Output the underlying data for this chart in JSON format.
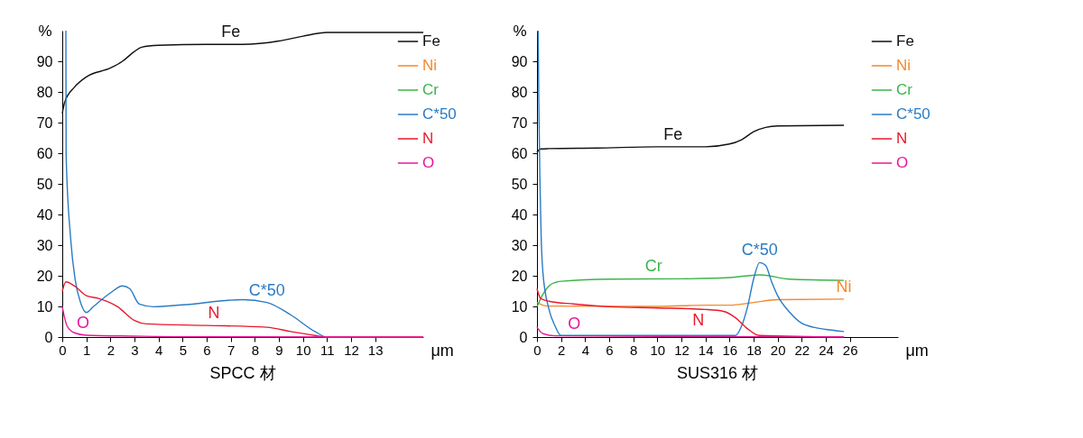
{
  "chart_data": [
    {
      "type": "line",
      "title": "SPCC 材",
      "xlabel": "μm",
      "ylabel": "%",
      "xlim": [
        0,
        15
      ],
      "ylim": [
        0,
        100
      ],
      "xticks": [
        0,
        1,
        2,
        3,
        4,
        5,
        6,
        7,
        8,
        9,
        10,
        11,
        12,
        13
      ],
      "yticks": [
        0,
        10,
        20,
        30,
        40,
        50,
        60,
        70,
        80,
        90
      ],
      "grid": false,
      "legend": "right",
      "line_style": "solid",
      "marker": "none",
      "series": [
        {
          "name": "Fe",
          "color": "#111111",
          "x": [
            0,
            0.1,
            0.5,
            1,
            2,
            2.5,
            3,
            3.3,
            4,
            6,
            7.5,
            9,
            10,
            11,
            15
          ],
          "values": [
            73,
            76.6,
            81.5,
            84.9,
            87.8,
            90,
            93.2,
            94.6,
            95.2,
            95.5,
            95.5,
            96.6,
            98.2,
            99.4,
            99.4
          ]
        },
        {
          "name": "Ni",
          "color": "#f28a2e"
        },
        {
          "name": "Cr",
          "color": "#3cb44b"
        },
        {
          "name": "C*50",
          "color": "#2b7bc4",
          "x": [
            0.15,
            0.16,
            0.35,
            0.53,
            0.77,
            1,
            1.3,
            2,
            2.5,
            2.8,
            3.2,
            3.8,
            5,
            7.5,
            8.5,
            9.5,
            10.5,
            11,
            12
          ],
          "values": [
            100,
            59.5,
            32,
            19,
            11,
            8,
            10,
            14.4,
            16.7,
            15.8,
            10.8,
            9.9,
            10.5,
            12.2,
            11.3,
            7.2,
            1.8,
            0,
            0
          ]
        },
        {
          "name": "N",
          "color": "#e8192c",
          "x": [
            0,
            0.15,
            0.5,
            1,
            1.5,
            2.3,
            3,
            3.5,
            6,
            8.5,
            9.5,
            10.5,
            11,
            15
          ],
          "values": [
            14.9,
            18,
            16.7,
            13.5,
            12.6,
            9.9,
            5.4,
            4.3,
            3.8,
            3.2,
            1.8,
            0.5,
            0,
            0
          ]
        },
        {
          "name": "O",
          "color": "#e8189a",
          "x": [
            0,
            0.2,
            0.5,
            1,
            3,
            5,
            15
          ],
          "values": [
            9.9,
            3.6,
            1.4,
            0.6,
            0.3,
            0.1,
            0
          ]
        }
      ],
      "annotations": [
        {
          "text": "Fe",
          "x": 7,
          "y": 95.5
        },
        {
          "text": "C*50",
          "x": 8.5,
          "y": 11.3
        },
        {
          "text": "N",
          "x": 6.3,
          "y": 3.7
        },
        {
          "text": "O",
          "x": 0.86,
          "y": 0.7
        }
      ]
    },
    {
      "type": "line",
      "title": "SUS316 材",
      "xlabel": "μm",
      "ylabel": "%",
      "xlim": [
        0,
        30
      ],
      "ylim": [
        0,
        100
      ],
      "xticks": [
        0,
        2,
        4,
        6,
        8,
        10,
        12,
        14,
        16,
        18,
        20,
        22,
        24,
        26
      ],
      "yticks": [
        0,
        10,
        20,
        30,
        40,
        50,
        60,
        70,
        80,
        90
      ],
      "grid": false,
      "legend": "right",
      "line_style": "solid",
      "marker": "none",
      "series": [
        {
          "name": "Fe",
          "color": "#111111",
          "x": [
            0,
            0.3,
            1,
            5,
            10,
            14,
            16,
            17,
            18,
            19,
            20,
            25.5
          ],
          "values": [
            60.3,
            61.4,
            61.5,
            61.7,
            62.1,
            62.1,
            63,
            64.4,
            67,
            68.4,
            68.9,
            69.1
          ]
        },
        {
          "name": "Ni",
          "color": "#f28a2e",
          "x": [
            0,
            0.5,
            1,
            10,
            14,
            16,
            18,
            20,
            25.5
          ],
          "values": [
            11.3,
            10.4,
            10.1,
            10,
            10.4,
            10.4,
            11.3,
            12.2,
            12.4
          ]
        },
        {
          "name": "Cr",
          "color": "#3cb44b",
          "x": [
            0,
            0.5,
            1,
            1.5,
            2,
            6,
            12,
            16,
            18.5,
            21,
            25.5
          ],
          "values": [
            9.9,
            14,
            16.7,
            17.8,
            18.2,
            18.9,
            19,
            19.4,
            20.3,
            18.9,
            18.5
          ]
        },
        {
          "name": "C*50",
          "color": "#2b7bc4",
          "x": [
            0.1,
            0.15,
            0.25,
            0.35,
            0.5,
            1,
            1.5,
            2,
            16.5,
            17,
            17.5,
            18,
            18.5,
            19,
            19.5,
            20,
            21,
            22,
            23,
            24,
            25.5
          ],
          "values": [
            100,
            77,
            50.4,
            32.4,
            20.7,
            9,
            3.6,
            0.5,
            0.5,
            3.6,
            9.9,
            18.9,
            24.3,
            23.4,
            18,
            13.5,
            8.1,
            4.5,
            3.2,
            2.5,
            1.8
          ]
        },
        {
          "name": "N",
          "color": "#e8192c",
          "x": [
            0,
            0.3,
            1,
            3,
            6,
            10,
            14,
            15.5,
            16.5,
            17.5,
            18.5,
            25.5
          ],
          "values": [
            15.8,
            12.6,
            11.7,
            10.8,
            9.9,
            9.5,
            9,
            8.4,
            6.3,
            2.7,
            0.5,
            0
          ]
        },
        {
          "name": "O",
          "color": "#e8189a",
          "x": [
            0,
            0.5,
            1.5,
            10,
            25.5
          ],
          "values": [
            3.2,
            1.1,
            0.4,
            0.2,
            0.1
          ]
        }
      ],
      "annotations": [
        {
          "text": "Fe",
          "x": 11.3,
          "y": 62.1
        },
        {
          "text": "Cr",
          "x": 9.7,
          "y": 19
        },
        {
          "text": "C*50",
          "x": 18.5,
          "y": 24.3
        },
        {
          "text": "Ni",
          "x": 25.5,
          "y": 12.4
        },
        {
          "text": "N",
          "x": 13.4,
          "y": 9.1
        },
        {
          "text": "O",
          "x": 3.1,
          "y": 0.3
        }
      ]
    }
  ]
}
